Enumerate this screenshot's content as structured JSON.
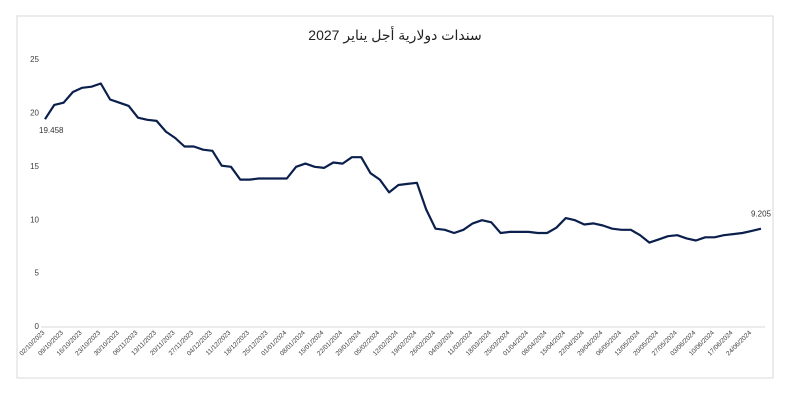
{
  "chart_data": {
    "type": "line",
    "title": "سندات دولارية أجل يناير 2027",
    "categories": [
      "02/10/2023",
      null,
      "09/10/2023",
      null,
      "16/10/2023",
      null,
      "23/10/2023",
      null,
      "30/10/2023",
      null,
      "06/11/2023",
      null,
      "13/11/2023",
      null,
      "20/11/2023",
      null,
      "27/11/2023",
      null,
      "04/12/2023",
      null,
      "11/12/2023",
      null,
      "18/12/2023",
      null,
      "25/12/2023",
      null,
      "01/01/2024",
      null,
      "08/01/2024",
      null,
      "15/01/2024",
      null,
      "22/01/2024",
      null,
      "29/01/2024",
      null,
      "05/02/2024",
      null,
      "12/02/2024",
      null,
      "19/02/2024",
      null,
      "26/02/2024",
      null,
      "04/03/2024",
      null,
      "11/03/2024",
      null,
      "18/03/2024",
      null,
      "25/03/2024",
      null,
      "01/04/2024",
      null,
      "08/04/2024",
      null,
      "15/04/2024",
      null,
      "22/04/2024",
      null,
      "29/04/2024",
      null,
      "06/05/2024",
      null,
      "13/05/2024",
      null,
      "20/05/2024",
      null,
      "27/05/2024",
      null,
      "03/06/2024",
      null,
      "10/06/2024",
      null,
      "17/06/2024",
      null,
      "24/06/2024",
      null
    ],
    "values": [
      19.458,
      20.8,
      21.0,
      22.0,
      22.4,
      22.5,
      22.8,
      21.3,
      21.0,
      20.7,
      19.6,
      19.4,
      19.3,
      18.3,
      17.7,
      16.9,
      16.9,
      16.6,
      16.5,
      15.1,
      15.0,
      13.8,
      13.8,
      13.9,
      13.9,
      13.9,
      13.9,
      15.0,
      15.3,
      15.0,
      14.9,
      15.4,
      15.3,
      15.9,
      15.9,
      14.4,
      13.8,
      12.6,
      13.3,
      13.4,
      13.5,
      11.0,
      9.2,
      9.1,
      8.8,
      9.1,
      9.7,
      10.0,
      9.8,
      8.8,
      8.9,
      8.9,
      8.9,
      8.8,
      8.8,
      9.3,
      10.2,
      10.0,
      9.6,
      9.7,
      9.5,
      9.2,
      9.1,
      9.1,
      8.6,
      7.9,
      8.2,
      8.5,
      8.6,
      8.3,
      8.1,
      8.4,
      8.4,
      8.6,
      8.7,
      8.8,
      9.0,
      9.205
    ],
    "color": "#0b1f4d",
    "ylim": [
      0,
      25
    ],
    "yticks": [
      0,
      5,
      10,
      15,
      20,
      25
    ]
  }
}
